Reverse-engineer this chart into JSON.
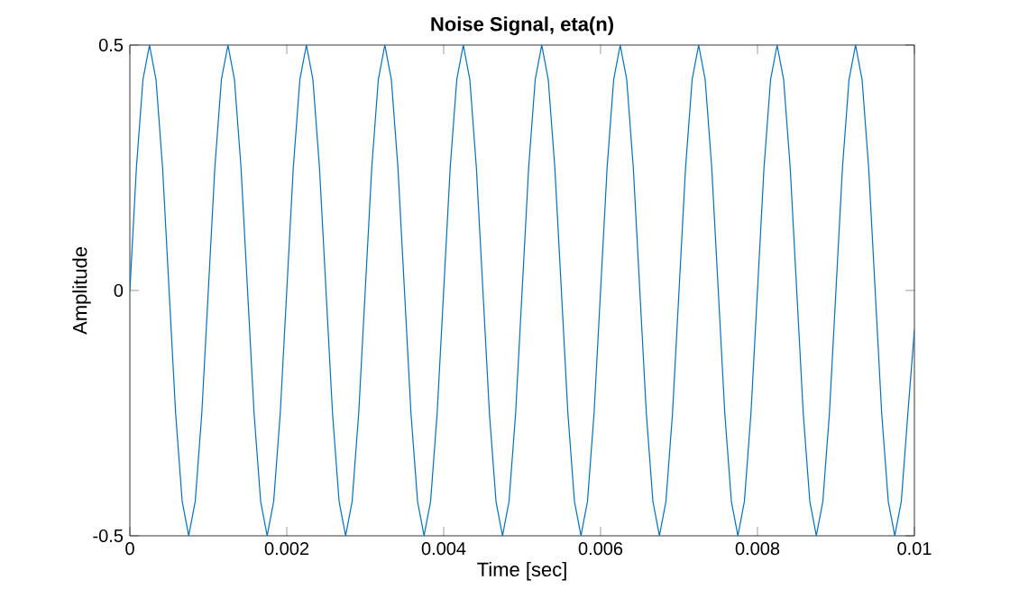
{
  "chart_data": {
    "type": "line",
    "title": "Noise Signal, eta(n)",
    "xlabel": "Time [sec]",
    "ylabel": "Amplitude",
    "xlim": [
      0,
      0.01
    ],
    "ylim": [
      -0.5,
      0.5
    ],
    "xticks": [
      0,
      0.002,
      0.004,
      0.006,
      0.008,
      0.01
    ],
    "yticks": [
      -0.5,
      0,
      0.5
    ],
    "grid": false,
    "marker": "none",
    "line_style": "solid",
    "x": [
      0,
      8.33e-05,
      0.000167,
      0.00025,
      0.000333,
      0.000417,
      0.0005,
      0.000583,
      0.000667,
      0.00075,
      0.000833,
      0.000917,
      0.001,
      0.001083,
      0.001167,
      0.00125,
      0.001333,
      0.001417,
      0.0015,
      0.001583,
      0.001667,
      0.00175,
      0.001833,
      0.001917,
      0.002,
      0.002083,
      0.002167,
      0.00225,
      0.002333,
      0.002417,
      0.0025,
      0.002583,
      0.002667,
      0.00275,
      0.002833,
      0.002917,
      0.003,
      0.003083,
      0.003167,
      0.00325,
      0.003333,
      0.003417,
      0.0035,
      0.003583,
      0.003667,
      0.00375,
      0.003833,
      0.003917,
      0.004,
      0.004083,
      0.004167,
      0.00425,
      0.004333,
      0.004417,
      0.0045,
      0.004583,
      0.004667,
      0.00475,
      0.004833,
      0.004917,
      0.005,
      0.005083,
      0.005167,
      0.00525,
      0.005333,
      0.005417,
      0.0055,
      0.005583,
      0.005667,
      0.00575,
      0.005833,
      0.005917,
      0.006,
      0.006083,
      0.006167,
      0.00625,
      0.006333,
      0.006417,
      0.0065,
      0.006583,
      0.006667,
      0.00675,
      0.006833,
      0.006917,
      0.007,
      0.007083,
      0.007167,
      0.00725,
      0.007333,
      0.007417,
      0.0075,
      0.007583,
      0.007667,
      0.00775,
      0.007833,
      0.007917,
      0.008,
      0.008083,
      0.008167,
      0.00825,
      0.008333,
      0.008417,
      0.0085,
      0.008583,
      0.008667,
      0.00875,
      0.008833,
      0.008917,
      0.009,
      0.009083,
      0.009167,
      0.00925,
      0.009333,
      0.009417,
      0.0095,
      0.009583,
      0.009667,
      0.00975,
      0.009833,
      0.009917,
      0.01
    ],
    "series": [
      {
        "color": "#0072bd",
        "values": [
          0,
          0.25,
          0.43,
          0.5,
          0.43,
          0.25,
          0,
          -0.25,
          -0.43,
          -0.5,
          -0.43,
          -0.25,
          0,
          0.25,
          0.43,
          0.5,
          0.43,
          0.25,
          0,
          -0.25,
          -0.43,
          -0.5,
          -0.43,
          -0.25,
          0,
          0.25,
          0.43,
          0.5,
          0.43,
          0.25,
          0,
          -0.25,
          -0.43,
          -0.5,
          -0.43,
          -0.25,
          0,
          0.25,
          0.43,
          0.5,
          0.43,
          0.25,
          0,
          -0.25,
          -0.43,
          -0.5,
          -0.43,
          -0.25,
          0,
          0.25,
          0.43,
          0.5,
          0.43,
          0.25,
          0,
          -0.25,
          -0.43,
          -0.5,
          -0.43,
          -0.25,
          0,
          0.25,
          0.43,
          0.5,
          0.43,
          0.25,
          0,
          -0.25,
          -0.43,
          -0.5,
          -0.43,
          -0.25,
          0,
          0.25,
          0.43,
          0.5,
          0.43,
          0.25,
          0,
          -0.25,
          -0.43,
          -0.5,
          -0.43,
          -0.25,
          0,
          0.25,
          0.43,
          0.5,
          0.43,
          0.25,
          0,
          -0.25,
          -0.43,
          -0.5,
          -0.43,
          -0.25,
          0,
          0.25,
          0.43,
          0.5,
          0.43,
          0.25,
          0,
          -0.25,
          -0.43,
          -0.5,
          -0.43,
          -0.25,
          0,
          0.25,
          0.43,
          0.5,
          0.43,
          0.25,
          0,
          -0.25,
          -0.43,
          -0.5,
          -0.43,
          -0.25,
          -0.08
        ]
      }
    ]
  }
}
